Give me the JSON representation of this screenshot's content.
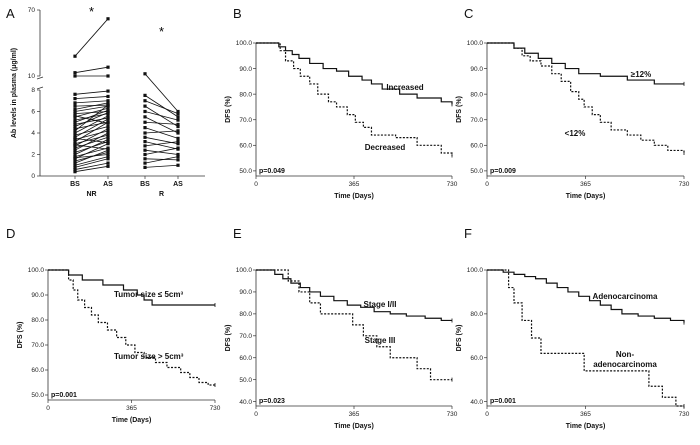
{
  "figure": {
    "panel_labels": [
      "A",
      "B",
      "C",
      "D",
      "E",
      "F"
    ]
  },
  "chart_data": [
    {
      "panel": "A",
      "type": "line",
      "ylabel": "Ab levels in plasma (μg/ml)",
      "yticks_top": [
        "10",
        "70"
      ],
      "yticks_bottom": [
        "0",
        "2",
        "4",
        "6",
        "8"
      ],
      "x_groups": [
        {
          "label": "NR",
          "points": [
            "BS",
            "AS"
          ],
          "star": "*"
        },
        {
          "label": "R",
          "points": [
            "BS",
            "AS"
          ],
          "star": "*"
        }
      ],
      "nr_pairs": [
        [
          28,
          62
        ],
        [
          13,
          18
        ],
        [
          10,
          10
        ],
        [
          7.6,
          7.9
        ],
        [
          7.2,
          7.4
        ],
        [
          6.8,
          7.0
        ],
        [
          6.5,
          6.6
        ],
        [
          6.2,
          6.8
        ],
        [
          6.0,
          6.5
        ],
        [
          5.8,
          6.0
        ],
        [
          5.5,
          6.3
        ],
        [
          5.2,
          5.8
        ],
        [
          5.0,
          6.1
        ],
        [
          4.8,
          5.4
        ],
        [
          4.6,
          5.9
        ],
        [
          4.4,
          5.0
        ],
        [
          4.2,
          6.6
        ],
        [
          4.0,
          5.6
        ],
        [
          3.8,
          4.6
        ],
        [
          3.6,
          5.3
        ],
        [
          3.4,
          4.2
        ],
        [
          3.2,
          5.0
        ],
        [
          3.0,
          3.8
        ],
        [
          2.8,
          4.4
        ],
        [
          2.6,
          3.6
        ],
        [
          2.4,
          4.0
        ],
        [
          2.2,
          3.2
        ],
        [
          2.0,
          3.4
        ],
        [
          1.8,
          2.6
        ],
        [
          1.6,
          3.0
        ],
        [
          1.4,
          2.2
        ],
        [
          1.2,
          2.4
        ],
        [
          1.0,
          1.8
        ],
        [
          0.8,
          1.6
        ],
        [
          0.6,
          1.2
        ],
        [
          0.4,
          0.9
        ],
        [
          2.9,
          2.5
        ],
        [
          3.5,
          3.1
        ],
        [
          1.7,
          2.0
        ],
        [
          5.6,
          4.9
        ]
      ],
      "r_pairs": [
        [
          12,
          6.0
        ],
        [
          7.5,
          5.5
        ],
        [
          7.0,
          5.8
        ],
        [
          6.5,
          4.6
        ],
        [
          6.0,
          5.2
        ],
        [
          5.5,
          4.0
        ],
        [
          5.0,
          4.8
        ],
        [
          4.5,
          3.5
        ],
        [
          4.0,
          4.2
        ],
        [
          3.6,
          3.0
        ],
        [
          3.2,
          2.5
        ],
        [
          2.8,
          3.2
        ],
        [
          2.4,
          2.0
        ],
        [
          2.0,
          2.6
        ],
        [
          1.6,
          1.5
        ],
        [
          1.2,
          1.8
        ],
        [
          0.8,
          1.0
        ]
      ]
    },
    {
      "panel": "B",
      "type": "line",
      "xlabel": "Time (Days)",
      "ylabel": "DFS (%)",
      "xlim": [
        0,
        730
      ],
      "ylim": [
        48,
        100
      ],
      "xticks": [
        0,
        365,
        730
      ],
      "yticks": [
        "50.0",
        "60.0",
        "70.0",
        "80.0",
        "90.0",
        "100.0"
      ],
      "pvalue": "p=0.049",
      "series": [
        {
          "name": "Increased",
          "style": "solid",
          "x": [
            0,
            85,
            110,
            135,
            160,
            200,
            250,
            300,
            345,
            395,
            430,
            470,
            535,
            600,
            690,
            730
          ],
          "y": [
            100,
            98.5,
            97,
            95.5,
            94,
            92,
            90,
            89,
            87,
            85.5,
            84,
            82,
            80,
            78.5,
            77,
            76
          ]
        },
        {
          "name": "Decreased",
          "style": "dashed",
          "x": [
            0,
            90,
            110,
            140,
            165,
            200,
            230,
            270,
            300,
            340,
            370,
            400,
            430,
            520,
            600,
            690,
            730
          ],
          "y": [
            100,
            97,
            93,
            90,
            87,
            84,
            80,
            77,
            75,
            72,
            69,
            67,
            64,
            63,
            60,
            57,
            56
          ]
        }
      ]
    },
    {
      "panel": "C",
      "type": "line",
      "xlabel": "Time (Days)",
      "ylabel": "DFS (%)",
      "xlim": [
        0,
        730
      ],
      "ylim": [
        48,
        100
      ],
      "xticks": [
        0,
        365,
        730
      ],
      "yticks": [
        "50.0",
        "60.0",
        "70.0",
        "80.0",
        "90.0",
        "100.0"
      ],
      "pvalue": "p=0.009",
      "series": [
        {
          "name": "≥12%",
          "style": "solid",
          "x": [
            0,
            100,
            140,
            190,
            240,
            290,
            340,
            420,
            520,
            620,
            730
          ],
          "y": [
            100,
            98,
            96,
            94,
            92,
            90,
            88,
            87,
            85.5,
            84,
            84
          ]
        },
        {
          "name": "<12%",
          "style": "dashed",
          "x": [
            0,
            100,
            130,
            160,
            200,
            240,
            275,
            310,
            340,
            360,
            390,
            420,
            460,
            520,
            570,
            620,
            670,
            730
          ],
          "y": [
            100,
            98,
            95,
            93,
            91,
            88,
            85,
            81,
            78,
            75,
            72,
            69,
            66,
            64,
            62,
            60,
            58,
            57
          ]
        }
      ]
    },
    {
      "panel": "D",
      "type": "line",
      "xlabel": "Time (Days)",
      "ylabel": "DFS (%)",
      "xlim": [
        0,
        730
      ],
      "ylim": [
        48,
        100
      ],
      "xticks": [
        0,
        365,
        730
      ],
      "yticks": [
        "50.0",
        "60.0",
        "70.0",
        "80.0",
        "90.0",
        "100.0"
      ],
      "pvalue": "p=0.001",
      "series": [
        {
          "name": "Tumor size ≤ 5cm³",
          "style": "solid",
          "x": [
            0,
            90,
            150,
            240,
            330,
            390,
            420,
            455,
            730
          ],
          "y": [
            100,
            98,
            96,
            94,
            92,
            90,
            88,
            86,
            86
          ]
        },
        {
          "name": "Tumor size > 5cm³",
          "style": "dashed",
          "x": [
            0,
            90,
            110,
            130,
            160,
            190,
            220,
            260,
            300,
            340,
            380,
            420,
            470,
            520,
            580,
            620,
            660,
            700,
            730
          ],
          "y": [
            100,
            96,
            92,
            88,
            85,
            82,
            79,
            76,
            73,
            70,
            67,
            65,
            63,
            61,
            59,
            57,
            55,
            54,
            54
          ]
        }
      ]
    },
    {
      "panel": "E",
      "type": "line",
      "xlabel": "Time (Days)",
      "ylabel": "DFS (%)",
      "xlim": [
        0,
        730
      ],
      "ylim": [
        38,
        100
      ],
      "xticks": [
        0,
        365,
        730
      ],
      "yticks": [
        "40.0",
        "50.0",
        "60.0",
        "70.0",
        "80.0",
        "90.0",
        "100.0"
      ],
      "pvalue": "p=0.023",
      "series": [
        {
          "name": "Stage I/II",
          "style": "solid",
          "x": [
            0,
            70,
            100,
            130,
            165,
            200,
            240,
            290,
            340,
            390,
            440,
            500,
            560,
            630,
            690,
            730
          ],
          "y": [
            100,
            98,
            96,
            94,
            92,
            90,
            88,
            86,
            84,
            83,
            81,
            80,
            79,
            78,
            77,
            77
          ]
        },
        {
          "name": "Stage III",
          "style": "dashed",
          "x": [
            0,
            120,
            160,
            200,
            240,
            300,
            360,
            400,
            450,
            500,
            560,
            600,
            650,
            700,
            730
          ],
          "y": [
            100,
            95,
            90,
            85,
            80,
            80,
            75,
            70,
            65,
            60,
            60,
            55,
            50,
            50,
            50
          ]
        }
      ]
    },
    {
      "panel": "F",
      "type": "line",
      "xlabel": "Time (Days)",
      "ylabel": "DFS (%)",
      "xlim": [
        0,
        730
      ],
      "ylim": [
        38,
        100
      ],
      "xticks": [
        0,
        365,
        730
      ],
      "yticks": [
        "40.0",
        "60.0",
        "80.0",
        "100.0"
      ],
      "pvalue": "p=0.001",
      "series": [
        {
          "name": "Adenocarcinoma",
          "style": "solid",
          "x": [
            0,
            60,
            100,
            140,
            180,
            220,
            260,
            300,
            340,
            380,
            420,
            460,
            500,
            560,
            620,
            680,
            730
          ],
          "y": [
            100,
            99,
            98,
            97,
            96,
            94,
            92,
            90,
            88,
            86,
            84,
            82,
            80,
            79,
            78,
            77,
            76
          ]
        },
        {
          "name": "Non-\nadenocarcinoma",
          "style": "dashed",
          "x": [
            0,
            80,
            100,
            130,
            165,
            200,
            240,
            360,
            500,
            545,
            600,
            650,
            700,
            730
          ],
          "y": [
            100,
            92,
            85,
            77,
            69,
            62,
            62,
            54,
            54,
            54,
            47,
            42,
            38,
            38
          ]
        }
      ]
    }
  ]
}
